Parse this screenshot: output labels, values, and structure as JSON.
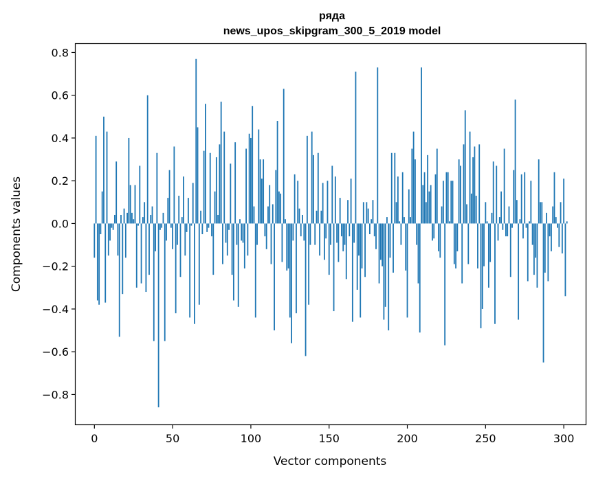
{
  "chart_data": {
    "type": "bar",
    "title": "ряда",
    "subtitle": "news_upos_skipgram_300_5_2019 model",
    "xlabel": "Vector components",
    "ylabel": "Components values",
    "xlim": [
      -12,
      314
    ],
    "ylim": [
      -0.94,
      0.84
    ],
    "x_ticks": [
      0,
      50,
      100,
      150,
      200,
      250,
      300
    ],
    "x_tick_labels": [
      "0",
      "50",
      "100",
      "150",
      "200",
      "250",
      "300"
    ],
    "y_ticks": [
      0.8,
      0.6,
      0.4,
      0.2,
      0.0,
      -0.2,
      -0.4,
      -0.6,
      -0.8
    ],
    "y_tick_labels": [
      "0.8",
      "0.6",
      "0.4",
      "0.2",
      "0.0",
      "−0.2",
      "−0.4",
      "−0.6",
      "−0.8"
    ],
    "bar_color": "#1f77b4",
    "grid": false,
    "legend": "none",
    "values": [
      -0.16,
      0.41,
      -0.36,
      -0.38,
      -0.05,
      0.15,
      0.5,
      -0.37,
      0.43,
      -0.15,
      -0.08,
      -0.02,
      -0.03,
      0.04,
      0.29,
      -0.15,
      -0.53,
      0.04,
      -0.33,
      0.07,
      -0.16,
      0.05,
      0.4,
      0.18,
      0.05,
      0.02,
      0.18,
      -0.3,
      -0.01,
      0.27,
      -0.28,
      0.03,
      0.1,
      -0.32,
      0.6,
      -0.24,
      0.04,
      0.08,
      -0.55,
      -0.13,
      0.33,
      -0.86,
      -0.03,
      -0.02,
      0.05,
      -0.55,
      -0.08,
      0.12,
      0.25,
      -0.02,
      -0.12,
      0.36,
      -0.42,
      -0.1,
      0.13,
      -0.25,
      0.03,
      0.22,
      -0.15,
      -0.04,
      0.12,
      -0.44,
      -0.01,
      0.19,
      -0.47,
      0.77,
      0.45,
      -0.38,
      0.06,
      -0.05,
      0.34,
      0.56,
      -0.04,
      -0.02,
      0.33,
      -0.06,
      -0.24,
      0.15,
      0.31,
      0.04,
      0.37,
      0.57,
      -0.19,
      0.43,
      -0.09,
      -0.15,
      -0.03,
      0.28,
      -0.24,
      -0.36,
      0.38,
      -0.1,
      -0.39,
      0.02,
      -0.08,
      -0.09,
      -0.21,
      0.35,
      -0.15,
      0.42,
      0.4,
      0.55,
      0.08,
      -0.44,
      -0.1,
      0.44,
      0.3,
      0.21,
      0.3,
      -0.06,
      -0.12,
      0.08,
      0.18,
      -0.19,
      0.09,
      -0.5,
      0.25,
      0.48,
      0.15,
      0.14,
      -0.18,
      0.63,
      0.02,
      -0.22,
      -0.21,
      -0.44,
      -0.56,
      -0.08,
      0.23,
      -0.42,
      0.2,
      0.07,
      -0.06,
      0.04,
      -0.08,
      -0.62,
      0.41,
      -0.38,
      -0.1,
      0.43,
      0.32,
      -0.1,
      0.06,
      0.33,
      -0.15,
      0.06,
      0.19,
      -0.17,
      -0.07,
      0.2,
      -0.24,
      -0.1,
      0.27,
      -0.41,
      0.22,
      -0.09,
      -0.18,
      0.12,
      -0.06,
      -0.13,
      -0.1,
      -0.26,
      0.11,
      -0.06,
      0.21,
      -0.46,
      -0.09,
      0.71,
      -0.31,
      -0.15,
      -0.44,
      -0.21,
      0.1,
      -0.25,
      0.1,
      0.07,
      -0.05,
      0.02,
      0.11,
      -0.06,
      -0.12,
      0.73,
      -0.28,
      -0.17,
      -0.2,
      -0.45,
      -0.39,
      0.03,
      -0.5,
      -0.16,
      0.33,
      -0.23,
      0.33,
      0.1,
      0.22,
      0.01,
      -0.1,
      0.24,
      0.03,
      -0.22,
      -0.44,
      0.16,
      0.03,
      0.35,
      0.43,
      0.3,
      -0.1,
      -0.28,
      -0.51,
      0.73,
      0.18,
      0.24,
      0.1,
      0.32,
      0.15,
      0.18,
      -0.08,
      -0.07,
      0.23,
      0.35,
      -0.13,
      -0.16,
      0.08,
      0.2,
      -0.57,
      0.24,
      0.24,
      0.01,
      0.2,
      0.2,
      -0.19,
      -0.21,
      -0.13,
      0.3,
      0.27,
      -0.28,
      0.37,
      0.53,
      0.09,
      -0.19,
      0.43,
      0.14,
      0.31,
      0.36,
      0.13,
      -0.21,
      0.37,
      -0.49,
      -0.4,
      -0.2,
      0.1,
      0.01,
      -0.3,
      -0.18,
      0.05,
      0.29,
      -0.47,
      0.27,
      -0.08,
      0.03,
      0.15,
      -0.03,
      0.35,
      -0.06,
      -0.06,
      0.08,
      -0.25,
      -0.02,
      0.25,
      0.58,
      0.11,
      -0.45,
      0.02,
      0.23,
      -0.07,
      0.24,
      -0.02,
      -0.27,
      0.01,
      0.2,
      -0.1,
      -0.24,
      -0.16,
      -0.3,
      0.3,
      0.1,
      0.1,
      -0.65,
      -0.23,
      0.05,
      -0.27,
      -0.06,
      -0.13,
      0.08,
      0.24,
      0.03,
      -0.02,
      -0.11,
      0.1,
      -0.14,
      0.21,
      -0.34,
      0.01
    ]
  }
}
